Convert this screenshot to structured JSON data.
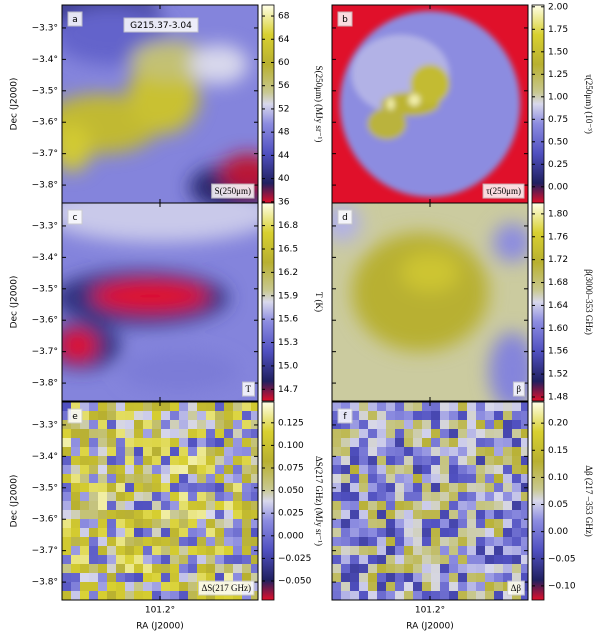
{
  "axes": {
    "xlabel": "RA (J2000)",
    "ylabel": "Dec (J2000)",
    "xlim": [
      101.3,
      101.1
    ],
    "xticks": [
      {
        "value": 101.2,
        "label": "101.2°"
      }
    ],
    "ylim": [
      -3.857,
      -3.227
    ],
    "yticks": [
      {
        "value": -3.3,
        "label": "−3.3°"
      },
      {
        "value": -3.4,
        "label": "−3.4°"
      },
      {
        "value": -3.5,
        "label": "−3.5°"
      },
      {
        "value": -3.6,
        "label": "−3.6°"
      },
      {
        "value": -3.7,
        "label": "−3.7°"
      },
      {
        "value": -3.8,
        "label": "−3.8°"
      }
    ],
    "colormap": [
      [
        0,
        "#e0102a"
      ],
      [
        0.1,
        "#202060"
      ],
      [
        0.25,
        "#5050c0"
      ],
      [
        0.4,
        "#8c8ce0"
      ],
      [
        0.5,
        "#d8d8ec"
      ],
      [
        0.56,
        "#c8c890"
      ],
      [
        0.7,
        "#b8b030"
      ],
      [
        0.85,
        "#d8d030"
      ],
      [
        1,
        "#ffffe8"
      ]
    ]
  },
  "chart_data": [
    {
      "type": "image",
      "panel": "a",
      "title": "G215.37-3.04",
      "map_label": "S(250μm)",
      "colorbar_label": "S(250μm) (MJy sr⁻¹)",
      "clim": [
        35.8,
        69.9
      ],
      "cticks": [
        36,
        40,
        44,
        48,
        52,
        56,
        60,
        64,
        68
      ]
    },
    {
      "type": "image",
      "panel": "b",
      "map_label": "τ(250μm)",
      "colorbar_label": "τ(250μm) (10⁻³)",
      "clim": [
        -0.18,
        2.02
      ],
      "cticks": [
        {
          "value": 0,
          "label": "0.00"
        },
        {
          "value": 0.25,
          "label": "0.25"
        },
        {
          "value": 0.5,
          "label": "0.50"
        },
        {
          "value": 0.75,
          "label": "0.75"
        },
        {
          "value": 1,
          "label": "1.00"
        },
        {
          "value": 1.25,
          "label": "1.25"
        },
        {
          "value": 1.5,
          "label": "1.50"
        },
        {
          "value": 1.75,
          "label": "1.75"
        },
        {
          "value": 2,
          "label": "2.00"
        }
      ]
    },
    {
      "type": "image",
      "panel": "c",
      "map_label": "T",
      "colorbar_label": "T (K)",
      "clim": [
        14.55,
        17.09
      ],
      "cticks": [
        14.7,
        {
          "value": 15,
          "label": "15.0"
        },
        15.3,
        15.6,
        15.9,
        16.2,
        16.5,
        16.8
      ]
    },
    {
      "type": "image",
      "panel": "d",
      "map_label": "β",
      "colorbar_label": "β(3000–353 GHz)",
      "clim": [
        1.473,
        1.819
      ],
      "cticks": [
        1.48,
        1.52,
        1.56,
        {
          "value": 1.6,
          "label": "1.60"
        },
        1.64,
        1.68,
        1.72,
        1.76,
        {
          "value": 1.8,
          "label": "1.80"
        }
      ]
    },
    {
      "type": "image",
      "panel": "e",
      "map_label": "ΔS(217 GHz)",
      "colorbar_label": "ΔS(217 GHz) (MJy sr⁻¹)",
      "clim": [
        -0.071,
        0.148
      ],
      "cticks": [
        {
          "value": -0.05,
          "label": "−0.050"
        },
        {
          "value": -0.025,
          "label": "−0.025"
        },
        {
          "value": 0,
          "label": "0.000"
        },
        {
          "value": 0.025,
          "label": "0.025"
        },
        {
          "value": 0.05,
          "label": "0.050"
        },
        {
          "value": 0.075,
          "label": "0.075"
        },
        {
          "value": 0.1,
          "label": "0.100"
        },
        0.125
      ]
    },
    {
      "type": "image",
      "panel": "f",
      "map_label": "Δβ",
      "colorbar_label": "Δβ (217 –353 GHz)",
      "clim": [
        -0.126,
        0.239
      ],
      "cticks": [
        {
          "value": -0.1,
          "label": "−0.10"
        },
        {
          "value": -0.05,
          "label": "−0.05"
        },
        {
          "value": 0,
          "label": "0.00"
        },
        {
          "value": 0.05,
          "label": "0.05"
        },
        {
          "value": 0.1,
          "label": "0.10"
        },
        {
          "value": 0.15,
          "label": "0.15"
        },
        {
          "value": 0.2,
          "label": "0.20"
        }
      ]
    }
  ]
}
